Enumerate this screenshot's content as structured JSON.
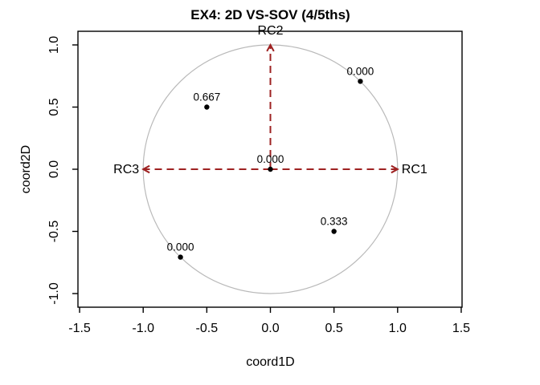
{
  "chart_data": {
    "type": "scatter",
    "title": "EX4: 2D VS-SOV (4/5ths)",
    "xlabel": "coord1D",
    "ylabel": "coord2D",
    "xlim": [
      -1.5,
      1.5
    ],
    "ylim": [
      -1.1,
      1.1
    ],
    "grid": false,
    "legend": "none",
    "x_ticks": [
      {
        "v": -1.5,
        "label": "-1.5"
      },
      {
        "v": -1.0,
        "label": "-1.0"
      },
      {
        "v": -0.5,
        "label": "-0.5"
      },
      {
        "v": 0.0,
        "label": "0.0"
      },
      {
        "v": 0.5,
        "label": "0.5"
      },
      {
        "v": 1.0,
        "label": "1.0"
      },
      {
        "v": 1.5,
        "label": "1.5"
      }
    ],
    "y_ticks": [
      {
        "v": -1.0,
        "label": "-1.0"
      },
      {
        "v": -0.5,
        "label": "-0.5"
      },
      {
        "v": 0.0,
        "label": "0.0"
      },
      {
        "v": 0.5,
        "label": "0.5"
      },
      {
        "v": 1.0,
        "label": "1.0"
      }
    ],
    "unit_circle": {
      "radius": 1.0
    },
    "points": [
      {
        "x": 0.707,
        "y": 0.707,
        "label": "0.000"
      },
      {
        "x": -0.5,
        "y": 0.5,
        "label": "0.667"
      },
      {
        "x": 0.0,
        "y": 0.0,
        "label": "0.000"
      },
      {
        "x": 0.5,
        "y": -0.5,
        "label": "0.333"
      },
      {
        "x": -0.707,
        "y": -0.707,
        "label": "0.000"
      }
    ],
    "arrows": [
      {
        "label": "RC1",
        "x": 1.0,
        "y": 0.0
      },
      {
        "label": "RC2",
        "x": 0.0,
        "y": 1.0
      },
      {
        "label": "RC3",
        "x": -1.0,
        "y": 0.0
      }
    ],
    "colors": {
      "arrow": "#9e2222",
      "arrow_label": "#c43c3c",
      "point": "#000000",
      "point_label": "#000000",
      "circle": "#b9b9b9",
      "axis": "#000000",
      "background": "#ffffff"
    }
  }
}
